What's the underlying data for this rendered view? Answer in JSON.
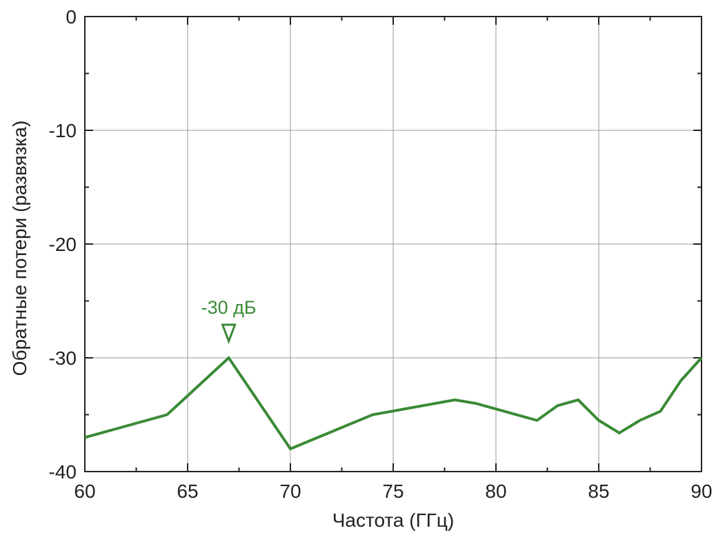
{
  "chart_data": {
    "type": "line",
    "title": "",
    "xlabel": "Частота (ГГц)",
    "ylabel": "Обратные потери (развязка)",
    "xlim": [
      60,
      90
    ],
    "ylim": [
      -40,
      0
    ],
    "grid": true,
    "x_ticks": [
      60,
      65,
      70,
      75,
      80,
      85,
      90
    ],
    "y_ticks": [
      0,
      -10,
      -20,
      -30,
      -40
    ],
    "x_tick_labels": [
      "60",
      "65",
      "70",
      "75",
      "80",
      "85",
      "90"
    ],
    "y_tick_labels": [
      "0",
      "-10",
      "-20",
      "-30",
      "-40"
    ],
    "series": [
      {
        "color": "#3a8a35",
        "x": [
          60,
          64,
          67,
          70,
          74,
          78,
          79,
          82,
          83,
          84,
          85,
          86,
          87,
          88,
          89,
          90
        ],
        "y": [
          -37,
          -35,
          -30,
          -38,
          -35,
          -33.7,
          -34,
          -35.5,
          -34.2,
          -33.7,
          -35.5,
          -36.6,
          -35.5,
          -34.7,
          -32,
          -30
        ]
      }
    ],
    "annotations": [
      {
        "text": "-30 дБ",
        "x": 67,
        "y": -30,
        "marker": "down-triangle",
        "color": "#3a8a35"
      }
    ]
  }
}
